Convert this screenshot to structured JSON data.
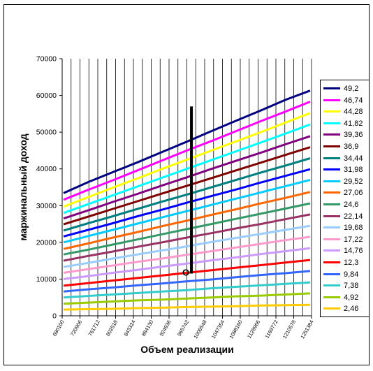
{
  "chart_data": {
    "type": "line",
    "ylabel": "маржинальный доход",
    "xlabel": "Объем реализации",
    "ylim": [
      0,
      70000
    ],
    "yticks": [
      0,
      10000,
      20000,
      30000,
      40000,
      50000,
      60000,
      70000
    ],
    "x_tick_labels": [
      "680100",
      "720906",
      "761712",
      "802518",
      "843324",
      "884130",
      "924936",
      "965742",
      "1006548",
      "1047354",
      "1088160",
      "1128966",
      "1169772",
      "1210578",
      "1251384"
    ],
    "grid": "vertical",
    "legend_position": "right",
    "marker_label": "О",
    "marker_x": 14.2,
    "marker_y_range": [
      11500,
      57000
    ],
    "series": [
      {
        "name": "49,2",
        "color": "#000080",
        "values": [
          33400,
          36400,
          39100,
          41800,
          44600,
          47400,
          50300,
          53100,
          55900,
          58800,
          61300
        ]
      },
      {
        "name": "46,74",
        "color": "#ff00ff",
        "values": [
          31600,
          34300,
          36900,
          39600,
          42300,
          45000,
          47600,
          50300,
          53000,
          55600,
          58300
        ]
      },
      {
        "name": "44,28",
        "color": "#ffff00",
        "values": [
          29700,
          32300,
          34900,
          37400,
          40000,
          42500,
          45000,
          47500,
          50000,
          52600,
          55200
        ]
      },
      {
        "name": "41,82",
        "color": "#00ffff",
        "values": [
          28000,
          30400,
          32800,
          35200,
          37600,
          40000,
          42400,
          44800,
          47200,
          49600,
          52100
        ]
      },
      {
        "name": "39,36",
        "color": "#800080",
        "values": [
          26500,
          28700,
          31000,
          33200,
          35500,
          37700,
          40000,
          42200,
          44400,
          46700,
          48900
        ]
      },
      {
        "name": "36,9",
        "color": "#800000",
        "values": [
          24900,
          27000,
          29100,
          31200,
          33300,
          35400,
          37500,
          39600,
          41700,
          43800,
          45900
        ]
      },
      {
        "name": "34,44",
        "color": "#008080",
        "values": [
          23200,
          25200,
          27100,
          29100,
          31100,
          33000,
          35000,
          37000,
          39000,
          40900,
          42900
        ]
      },
      {
        "name": "31,98",
        "color": "#0000ff",
        "values": [
          21600,
          23400,
          25200,
          27100,
          28900,
          30800,
          32600,
          34400,
          36300,
          38100,
          39900
        ]
      },
      {
        "name": "29,52",
        "color": "#00ccff",
        "values": [
          20000,
          21700,
          23400,
          25100,
          26800,
          28500,
          30200,
          31900,
          33600,
          35300,
          37000
        ]
      },
      {
        "name": "27,06",
        "color": "#ff6600",
        "values": [
          18200,
          19700,
          21300,
          22800,
          24400,
          25900,
          27500,
          29000,
          30600,
          32100,
          33700
        ]
      },
      {
        "name": "24,6",
        "color": "#339966",
        "values": [
          16700,
          18000,
          19400,
          20800,
          22200,
          23600,
          25000,
          26400,
          27800,
          29200,
          30600
        ]
      },
      {
        "name": "22,14",
        "color": "#993366",
        "values": [
          15000,
          16300,
          17500,
          18800,
          20000,
          21300,
          22500,
          23800,
          25000,
          26300,
          27600
        ]
      },
      {
        "name": "19,68",
        "color": "#99ccff",
        "values": [
          13300,
          14400,
          15600,
          16700,
          17800,
          18900,
          20100,
          21200,
          22300,
          23400,
          24500
        ]
      },
      {
        "name": "17,22",
        "color": "#ff99cc",
        "values": [
          11700,
          12700,
          13700,
          14700,
          15600,
          16600,
          17600,
          18600,
          19600,
          20600,
          21500
        ]
      },
      {
        "name": "14,76",
        "color": "#cc99ff",
        "values": [
          10000,
          10800,
          11700,
          12500,
          13400,
          14200,
          15100,
          15900,
          16800,
          17600,
          18400
        ]
      },
      {
        "name": "12,3",
        "color": "#ff0000",
        "values": [
          8200,
          8900,
          9600,
          10300,
          11000,
          11700,
          12400,
          13100,
          13800,
          14500,
          15200
        ]
      },
      {
        "name": "9,84",
        "color": "#3366ff",
        "values": [
          6600,
          7200,
          7700,
          8300,
          8800,
          9400,
          9900,
          10500,
          11100,
          11600,
          12200
        ]
      },
      {
        "name": "7,38",
        "color": "#33cccc",
        "values": [
          5000,
          5400,
          5800,
          6200,
          6600,
          7000,
          7500,
          7900,
          8300,
          8700,
          9100
        ]
      },
      {
        "name": "4,92",
        "color": "#99cc00",
        "values": [
          3300,
          3600,
          3900,
          4200,
          4400,
          4700,
          5000,
          5300,
          5500,
          5800,
          6100
        ]
      },
      {
        "name": "2,46",
        "color": "#ffcc00",
        "values": [
          1700,
          1800,
          1900,
          2100,
          2200,
          2400,
          2500,
          2600,
          2800,
          2900,
          3000
        ]
      }
    ]
  }
}
